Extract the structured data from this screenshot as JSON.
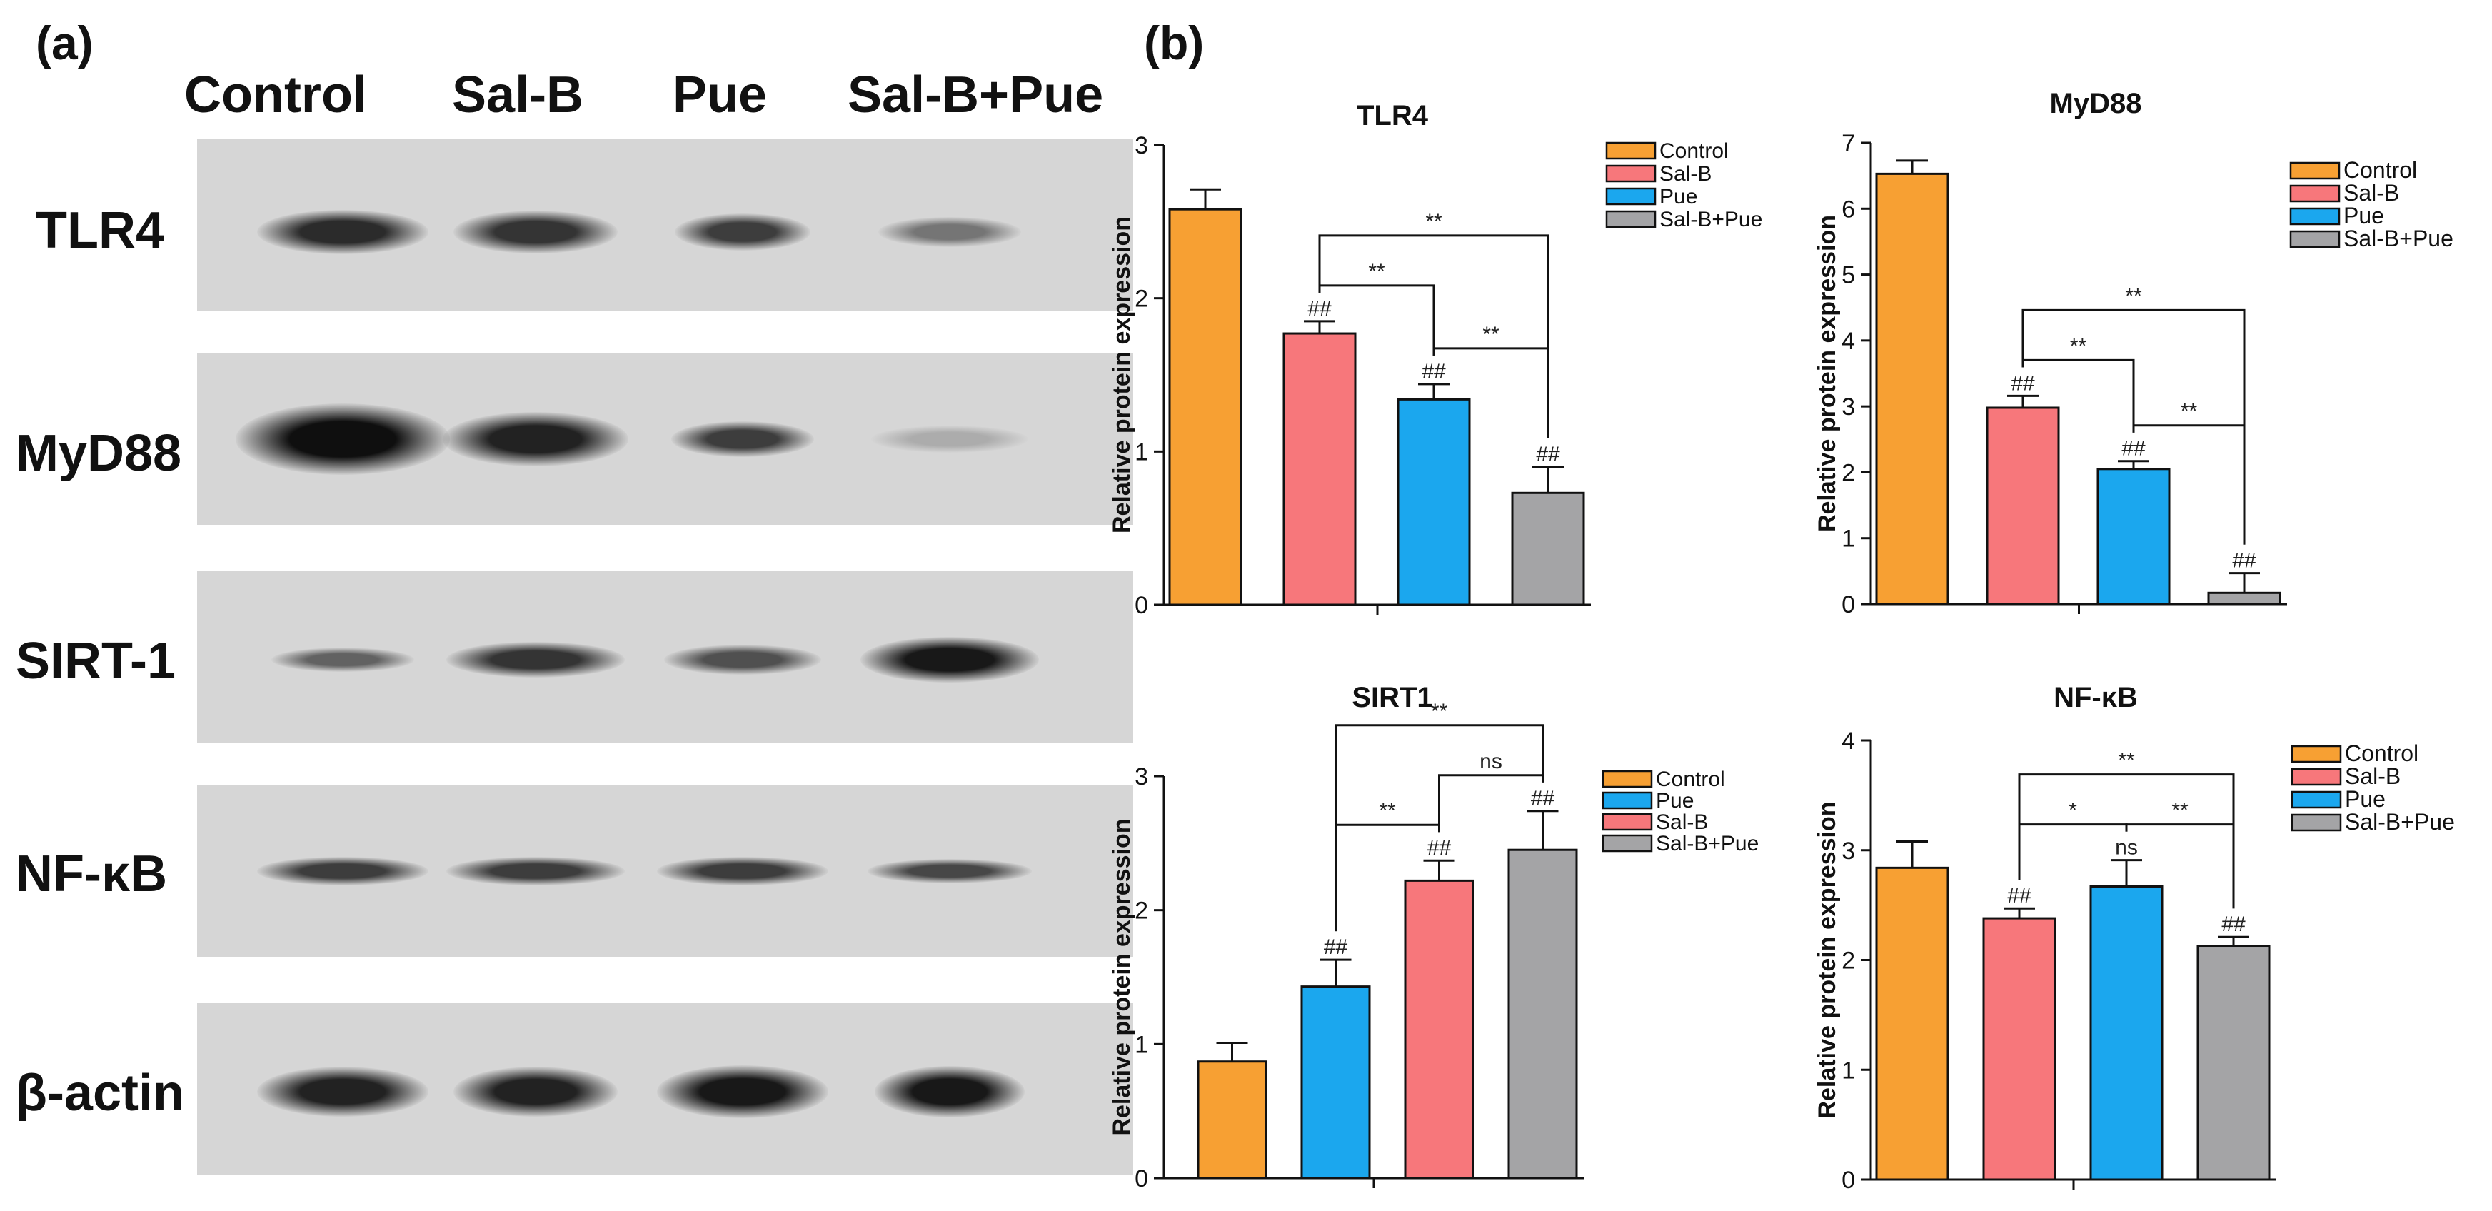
{
  "panel_a": {
    "label": "(a)",
    "lanes": [
      "Control",
      "Sal-B",
      "Pue",
      "Sal-B+Pue"
    ],
    "blots": [
      {
        "label": "TLR4",
        "band_intensity": [
          0.85,
          0.8,
          0.75,
          0.45
        ]
      },
      {
        "label": "MyD88",
        "band_intensity": [
          1.0,
          0.9,
          0.75,
          0.15
        ]
      },
      {
        "label": "SIRT-1",
        "band_intensity": [
          0.55,
          0.8,
          0.65,
          0.95
        ]
      },
      {
        "label": "NF-κB",
        "band_intensity": [
          0.75,
          0.75,
          0.75,
          0.7
        ]
      },
      {
        "label": "β-actin",
        "band_intensity": [
          0.9,
          0.9,
          0.95,
          0.95
        ]
      }
    ]
  },
  "panel_b": {
    "label": "(b)"
  },
  "chart_data": [
    {
      "type": "bar",
      "title": "TLR4",
      "ylabel": "Relative protein expression",
      "ylim": [
        0,
        3
      ],
      "yticks": [
        0,
        1,
        2,
        3
      ],
      "categories": [
        "Control",
        "Sal-B",
        "Pue",
        "Sal-B+Pue"
      ],
      "values": [
        2.58,
        1.77,
        1.34,
        0.73
      ],
      "errors": [
        0.13,
        0.08,
        0.1,
        0.17
      ],
      "colors": [
        "#f7a033",
        "#f7777b",
        "#1ba7ee",
        "#a4a4a6"
      ],
      "bar_labels": [
        "",
        "##",
        "##",
        "##"
      ],
      "legend": [
        "Control",
        "Sal-B",
        "Pue",
        "Sal-B+Pue"
      ],
      "comparisons": [
        {
          "from": 1,
          "to": 3,
          "label": "**"
        },
        {
          "from": 1,
          "to": 2,
          "label": "**"
        },
        {
          "from": 2,
          "to": 3,
          "label": "**"
        }
      ]
    },
    {
      "type": "bar",
      "title": "MyD88",
      "ylabel": "Relative protein expression",
      "ylim": [
        0,
        7
      ],
      "yticks": [
        0,
        1,
        2,
        3,
        4,
        5,
        6,
        7
      ],
      "categories": [
        "Control",
        "Sal-B",
        "Pue",
        "Sal-B+Pue"
      ],
      "values": [
        6.53,
        2.98,
        2.05,
        0.17
      ],
      "errors": [
        0.2,
        0.18,
        0.12,
        0.3
      ],
      "colors": [
        "#f7a033",
        "#f7777b",
        "#1ba7ee",
        "#a4a4a6"
      ],
      "bar_labels": [
        "",
        "##",
        "##",
        "##"
      ],
      "legend": [
        "Control",
        "Sal-B",
        "Pue",
        "Sal-B+Pue"
      ],
      "comparisons": [
        {
          "from": 1,
          "to": 3,
          "label": "**"
        },
        {
          "from": 1,
          "to": 2,
          "label": "**"
        },
        {
          "from": 2,
          "to": 3,
          "label": "**"
        }
      ]
    },
    {
      "type": "bar",
      "title": "SIRT1",
      "ylabel": "Relative protein expression",
      "ylim": [
        0,
        3
      ],
      "yticks": [
        0,
        1,
        2,
        3
      ],
      "categories": [
        "Control",
        "Pue",
        "Sal-B",
        "Sal-B+Pue"
      ],
      "values": [
        0.87,
        1.43,
        2.22,
        2.45
      ],
      "errors": [
        0.14,
        0.2,
        0.15,
        0.29
      ],
      "colors": [
        "#f7a033",
        "#1ba7ee",
        "#f7777b",
        "#a4a4a6"
      ],
      "bar_labels": [
        "",
        "##",
        "##",
        "##"
      ],
      "legend": [
        "Control",
        "Pue",
        "Sal-B",
        "Sal-B+Pue"
      ],
      "comparisons": [
        {
          "from": 1,
          "to": 3,
          "label": "**"
        },
        {
          "from": 1,
          "to": 2,
          "label": "**"
        },
        {
          "from": 2,
          "to": 3,
          "label": "ns"
        }
      ]
    },
    {
      "type": "bar",
      "title": "NF-κB",
      "ylabel": "Relative protein expression",
      "ylim": [
        0,
        4
      ],
      "yticks": [
        0,
        1,
        2,
        3,
        4
      ],
      "categories": [
        "Control",
        "Sal-B",
        "Pue",
        "Sal-B+Pue"
      ],
      "values": [
        2.84,
        2.38,
        2.67,
        2.13
      ],
      "errors": [
        0.24,
        0.09,
        0.24,
        0.08
      ],
      "colors": [
        "#f7a033",
        "#f7777b",
        "#1ba7ee",
        "#a4a4a6"
      ],
      "bar_labels": [
        "",
        "##",
        "ns",
        "##"
      ],
      "legend": [
        "Control",
        "Sal-B",
        "Pue",
        "Sal-B+Pue"
      ],
      "comparisons": [
        {
          "from": 1,
          "to": 3,
          "label": "**"
        },
        {
          "from": 1,
          "to": 2,
          "label": "*"
        },
        {
          "from": 2,
          "to": 3,
          "label": "**"
        }
      ]
    }
  ]
}
